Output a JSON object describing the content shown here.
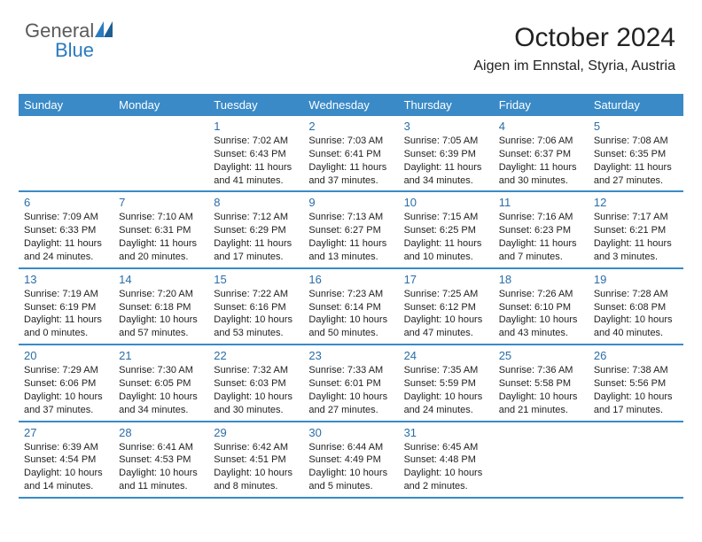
{
  "logo": {
    "part1": "General",
    "part2": "Blue"
  },
  "header": {
    "month_title": "October 2024",
    "location": "Aigen im Ennstal, Styria, Austria"
  },
  "colors": {
    "header_blue": "#3a8ac7",
    "day_num_color": "#2a6ea8",
    "text_color": "#222222",
    "logo_gray": "#5a5a5a",
    "logo_blue": "#2a7bbf"
  },
  "weekdays": [
    "Sunday",
    "Monday",
    "Tuesday",
    "Wednesday",
    "Thursday",
    "Friday",
    "Saturday"
  ],
  "weeks": [
    [
      {
        "n": "",
        "sr": "",
        "ss": "",
        "dl": ""
      },
      {
        "n": "",
        "sr": "",
        "ss": "",
        "dl": ""
      },
      {
        "n": "1",
        "sr": "Sunrise: 7:02 AM",
        "ss": "Sunset: 6:43 PM",
        "dl": "Daylight: 11 hours and 41 minutes."
      },
      {
        "n": "2",
        "sr": "Sunrise: 7:03 AM",
        "ss": "Sunset: 6:41 PM",
        "dl": "Daylight: 11 hours and 37 minutes."
      },
      {
        "n": "3",
        "sr": "Sunrise: 7:05 AM",
        "ss": "Sunset: 6:39 PM",
        "dl": "Daylight: 11 hours and 34 minutes."
      },
      {
        "n": "4",
        "sr": "Sunrise: 7:06 AM",
        "ss": "Sunset: 6:37 PM",
        "dl": "Daylight: 11 hours and 30 minutes."
      },
      {
        "n": "5",
        "sr": "Sunrise: 7:08 AM",
        "ss": "Sunset: 6:35 PM",
        "dl": "Daylight: 11 hours and 27 minutes."
      }
    ],
    [
      {
        "n": "6",
        "sr": "Sunrise: 7:09 AM",
        "ss": "Sunset: 6:33 PM",
        "dl": "Daylight: 11 hours and 24 minutes."
      },
      {
        "n": "7",
        "sr": "Sunrise: 7:10 AM",
        "ss": "Sunset: 6:31 PM",
        "dl": "Daylight: 11 hours and 20 minutes."
      },
      {
        "n": "8",
        "sr": "Sunrise: 7:12 AM",
        "ss": "Sunset: 6:29 PM",
        "dl": "Daylight: 11 hours and 17 minutes."
      },
      {
        "n": "9",
        "sr": "Sunrise: 7:13 AM",
        "ss": "Sunset: 6:27 PM",
        "dl": "Daylight: 11 hours and 13 minutes."
      },
      {
        "n": "10",
        "sr": "Sunrise: 7:15 AM",
        "ss": "Sunset: 6:25 PM",
        "dl": "Daylight: 11 hours and 10 minutes."
      },
      {
        "n": "11",
        "sr": "Sunrise: 7:16 AM",
        "ss": "Sunset: 6:23 PM",
        "dl": "Daylight: 11 hours and 7 minutes."
      },
      {
        "n": "12",
        "sr": "Sunrise: 7:17 AM",
        "ss": "Sunset: 6:21 PM",
        "dl": "Daylight: 11 hours and 3 minutes."
      }
    ],
    [
      {
        "n": "13",
        "sr": "Sunrise: 7:19 AM",
        "ss": "Sunset: 6:19 PM",
        "dl": "Daylight: 11 hours and 0 minutes."
      },
      {
        "n": "14",
        "sr": "Sunrise: 7:20 AM",
        "ss": "Sunset: 6:18 PM",
        "dl": "Daylight: 10 hours and 57 minutes."
      },
      {
        "n": "15",
        "sr": "Sunrise: 7:22 AM",
        "ss": "Sunset: 6:16 PM",
        "dl": "Daylight: 10 hours and 53 minutes."
      },
      {
        "n": "16",
        "sr": "Sunrise: 7:23 AM",
        "ss": "Sunset: 6:14 PM",
        "dl": "Daylight: 10 hours and 50 minutes."
      },
      {
        "n": "17",
        "sr": "Sunrise: 7:25 AM",
        "ss": "Sunset: 6:12 PM",
        "dl": "Daylight: 10 hours and 47 minutes."
      },
      {
        "n": "18",
        "sr": "Sunrise: 7:26 AM",
        "ss": "Sunset: 6:10 PM",
        "dl": "Daylight: 10 hours and 43 minutes."
      },
      {
        "n": "19",
        "sr": "Sunrise: 7:28 AM",
        "ss": "Sunset: 6:08 PM",
        "dl": "Daylight: 10 hours and 40 minutes."
      }
    ],
    [
      {
        "n": "20",
        "sr": "Sunrise: 7:29 AM",
        "ss": "Sunset: 6:06 PM",
        "dl": "Daylight: 10 hours and 37 minutes."
      },
      {
        "n": "21",
        "sr": "Sunrise: 7:30 AM",
        "ss": "Sunset: 6:05 PM",
        "dl": "Daylight: 10 hours and 34 minutes."
      },
      {
        "n": "22",
        "sr": "Sunrise: 7:32 AM",
        "ss": "Sunset: 6:03 PM",
        "dl": "Daylight: 10 hours and 30 minutes."
      },
      {
        "n": "23",
        "sr": "Sunrise: 7:33 AM",
        "ss": "Sunset: 6:01 PM",
        "dl": "Daylight: 10 hours and 27 minutes."
      },
      {
        "n": "24",
        "sr": "Sunrise: 7:35 AM",
        "ss": "Sunset: 5:59 PM",
        "dl": "Daylight: 10 hours and 24 minutes."
      },
      {
        "n": "25",
        "sr": "Sunrise: 7:36 AM",
        "ss": "Sunset: 5:58 PM",
        "dl": "Daylight: 10 hours and 21 minutes."
      },
      {
        "n": "26",
        "sr": "Sunrise: 7:38 AM",
        "ss": "Sunset: 5:56 PM",
        "dl": "Daylight: 10 hours and 17 minutes."
      }
    ],
    [
      {
        "n": "27",
        "sr": "Sunrise: 6:39 AM",
        "ss": "Sunset: 4:54 PM",
        "dl": "Daylight: 10 hours and 14 minutes."
      },
      {
        "n": "28",
        "sr": "Sunrise: 6:41 AM",
        "ss": "Sunset: 4:53 PM",
        "dl": "Daylight: 10 hours and 11 minutes."
      },
      {
        "n": "29",
        "sr": "Sunrise: 6:42 AM",
        "ss": "Sunset: 4:51 PM",
        "dl": "Daylight: 10 hours and 8 minutes."
      },
      {
        "n": "30",
        "sr": "Sunrise: 6:44 AM",
        "ss": "Sunset: 4:49 PM",
        "dl": "Daylight: 10 hours and 5 minutes."
      },
      {
        "n": "31",
        "sr": "Sunrise: 6:45 AM",
        "ss": "Sunset: 4:48 PM",
        "dl": "Daylight: 10 hours and 2 minutes."
      },
      {
        "n": "",
        "sr": "",
        "ss": "",
        "dl": ""
      },
      {
        "n": "",
        "sr": "",
        "ss": "",
        "dl": ""
      }
    ]
  ]
}
